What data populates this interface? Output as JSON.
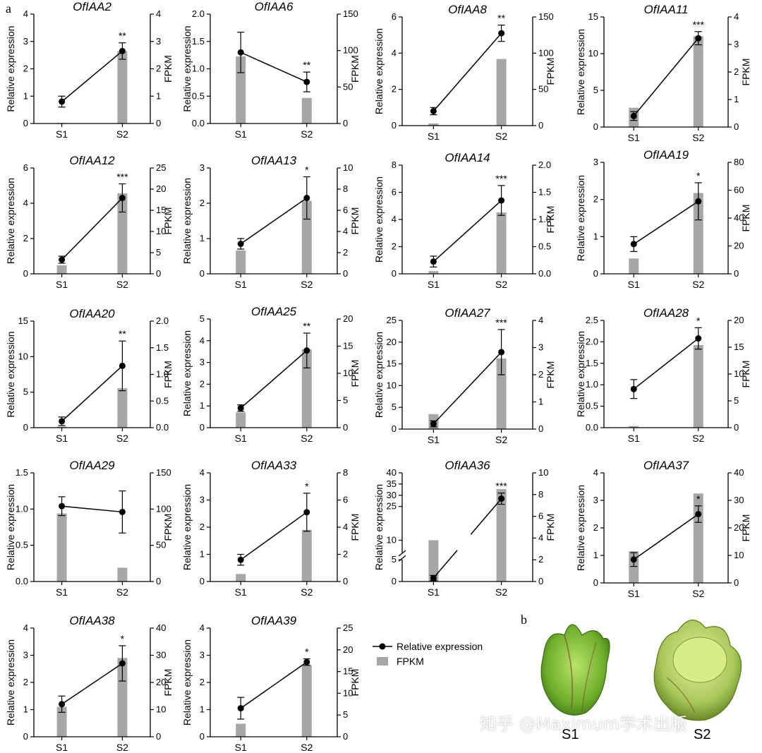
{
  "figure": {
    "panel_a": "a",
    "panel_b": "b",
    "legend": {
      "line_label": "Relative expression",
      "bar_label": "FPKM"
    },
    "photo_labels": [
      "S1",
      "S2"
    ],
    "watermark": "知乎 @Maximum学术出版"
  },
  "colors": {
    "bar": "#a6a6a6",
    "line": "#000000",
    "axis": "#000000"
  },
  "chart_data": [
    {
      "type": "bar",
      "title": "OfIAA2",
      "categories": [
        "S1",
        "S2"
      ],
      "ylabel": "Relative expression",
      "y2label": "FPKM",
      "ylim": [
        0,
        4
      ],
      "yticks": [
        0,
        1,
        2,
        3,
        4
      ],
      "y2lim": [
        0,
        4
      ],
      "y2ticks": [
        0,
        1,
        2,
        3,
        4
      ],
      "series": [
        {
          "name": "FPKM",
          "axis": "right",
          "values": [
            0.02,
            2.65
          ]
        },
        {
          "name": "Relative expression",
          "axis": "left",
          "values": [
            0.8,
            2.65
          ],
          "errors": [
            0.2,
            0.3
          ]
        }
      ],
      "significance": [
        "",
        "**"
      ]
    },
    {
      "type": "bar",
      "title": "OfIAA6",
      "categories": [
        "S1",
        "S2"
      ],
      "ylabel": "Relative expression",
      "y2label": "FPKM",
      "ylim": [
        0,
        2
      ],
      "yticks": [
        "0.0",
        "0.5",
        "1.0",
        "1.5",
        "2.0"
      ],
      "y2lim": [
        0,
        150
      ],
      "y2ticks": [
        0,
        50,
        100,
        150
      ],
      "series": [
        {
          "name": "FPKM",
          "axis": "right",
          "values": [
            92,
            35
          ]
        },
        {
          "name": "Relative expression",
          "axis": "left",
          "values": [
            1.3,
            0.76
          ],
          "errors": [
            0.37,
            0.18
          ]
        }
      ],
      "significance": [
        "",
        "**"
      ]
    },
    {
      "type": "bar",
      "title": "OfIAA8",
      "categories": [
        "S1",
        "S2"
      ],
      "ylabel": "Relative expression",
      "y2label": "FPKM",
      "ylim": [
        0,
        6
      ],
      "yticks": [
        0,
        2,
        4,
        6
      ],
      "y2lim": [
        0,
        150
      ],
      "y2ticks": [
        0,
        50,
        100,
        150
      ],
      "series": [
        {
          "name": "FPKM",
          "axis": "right",
          "values": [
            3,
            92
          ]
        },
        {
          "name": "Relative expression",
          "axis": "left",
          "values": [
            0.8,
            5.1
          ],
          "errors": [
            0.2,
            0.45
          ]
        }
      ],
      "significance": [
        "",
        "**"
      ]
    },
    {
      "type": "bar",
      "title": "OfIAA11",
      "categories": [
        "S1",
        "S2"
      ],
      "ylabel": "Relative expression",
      "y2label": "FPKM",
      "ylim": [
        0,
        15
      ],
      "yticks": [
        0,
        5,
        10,
        15
      ],
      "y2lim": [
        0,
        4
      ],
      "y2ticks": [
        0,
        1,
        2,
        3,
        4
      ],
      "series": [
        {
          "name": "FPKM",
          "axis": "right",
          "values": [
            0.7,
            3.3
          ]
        },
        {
          "name": "Relative expression",
          "axis": "left",
          "values": [
            1.5,
            12.1
          ],
          "errors": [
            0.6,
            0.9
          ]
        }
      ],
      "significance": [
        "",
        "***"
      ]
    },
    {
      "type": "bar",
      "title": "OfIAA12",
      "categories": [
        "S1",
        "S2"
      ],
      "ylabel": "Relative expression",
      "y2label": "FPKM",
      "ylim": [
        0,
        6
      ],
      "yticks": [
        0,
        2,
        4,
        6
      ],
      "y2lim": [
        0,
        25
      ],
      "y2ticks": [
        0,
        5,
        10,
        15,
        20,
        25
      ],
      "series": [
        {
          "name": "FPKM",
          "axis": "right",
          "values": [
            2,
            19
          ]
        },
        {
          "name": "Relative expression",
          "axis": "left",
          "values": [
            0.8,
            4.3
          ],
          "errors": [
            0.2,
            0.8
          ]
        }
      ],
      "significance": [
        "",
        "***"
      ]
    },
    {
      "type": "bar",
      "title": "OfIAA13",
      "categories": [
        "S1",
        "S2"
      ],
      "ylabel": "Relative expression",
      "y2label": "FPKM",
      "ylim": [
        0,
        3
      ],
      "yticks": [
        0,
        1,
        2,
        3
      ],
      "y2lim": [
        0,
        10
      ],
      "y2ticks": [
        0,
        2,
        4,
        6,
        8,
        10
      ],
      "series": [
        {
          "name": "FPKM",
          "axis": "right",
          "values": [
            2.2,
            6.9
          ]
        },
        {
          "name": "Relative expression",
          "axis": "left",
          "values": [
            0.85,
            2.15
          ],
          "errors": [
            0.15,
            0.6
          ]
        }
      ],
      "significance": [
        "",
        "*"
      ]
    },
    {
      "type": "bar",
      "title": "OfIAA14",
      "categories": [
        "S1",
        "S2"
      ],
      "ylabel": "Relative expression",
      "y2label": "FPKM",
      "ylim": [
        0,
        8
      ],
      "yticks": [
        0,
        2,
        4,
        6,
        8
      ],
      "y2lim": [
        0,
        2
      ],
      "y2ticks": [
        "0.0",
        "0.5",
        "1.0",
        "1.5",
        "2.0"
      ],
      "series": [
        {
          "name": "FPKM",
          "axis": "right",
          "values": [
            0.05,
            1.13
          ]
        },
        {
          "name": "Relative expression",
          "axis": "left",
          "values": [
            0.9,
            5.4
          ],
          "errors": [
            0.4,
            1.1
          ]
        }
      ],
      "significance": [
        "",
        "***"
      ]
    },
    {
      "type": "bar",
      "title": "OfIAA19",
      "categories": [
        "S1",
        "S2"
      ],
      "ylabel": "Relative expression",
      "y2label": "FPKM",
      "ylim": [
        0,
        3
      ],
      "yticks": [
        0,
        1,
        2,
        3
      ],
      "y2lim": [
        0,
        80
      ],
      "y2ticks": [
        0,
        20,
        40,
        60,
        80
      ],
      "series": [
        {
          "name": "FPKM",
          "axis": "right",
          "values": [
            11,
            58
          ]
        },
        {
          "name": "Relative expression",
          "axis": "left",
          "values": [
            0.8,
            1.95
          ],
          "errors": [
            0.2,
            0.5
          ]
        }
      ],
      "significance": [
        "",
        "*"
      ]
    },
    {
      "type": "bar",
      "title": "OfIAA20",
      "categories": [
        "S1",
        "S2"
      ],
      "ylabel": "Relative expression",
      "y2label": "FPKM",
      "ylim": [
        0,
        15
      ],
      "yticks": [
        0,
        5,
        10,
        15
      ],
      "y2lim": [
        0,
        2
      ],
      "y2ticks": [
        "0.0",
        "0.5",
        "1.0",
        "1.5",
        "2.0"
      ],
      "series": [
        {
          "name": "FPKM",
          "axis": "right",
          "values": [
            0.02,
            0.74
          ]
        },
        {
          "name": "Relative expression",
          "axis": "left",
          "values": [
            0.9,
            8.7
          ],
          "errors": [
            0.6,
            3.5
          ]
        }
      ],
      "significance": [
        "",
        "**"
      ]
    },
    {
      "type": "bar",
      "title": "OfIAA25",
      "categories": [
        "S1",
        "S2"
      ],
      "ylabel": "Relative expression",
      "y2label": "FPKM",
      "ylim": [
        0,
        5
      ],
      "yticks": [
        0,
        1,
        2,
        3,
        4,
        5
      ],
      "y2lim": [
        0,
        20
      ],
      "y2ticks": [
        0,
        5,
        10,
        15,
        20
      ],
      "series": [
        {
          "name": "FPKM",
          "axis": "right",
          "values": [
            2.8,
            14.4
          ]
        },
        {
          "name": "Relative expression",
          "axis": "left",
          "values": [
            0.9,
            3.55
          ],
          "errors": [
            0.15,
            0.8
          ]
        }
      ],
      "significance": [
        "",
        "**"
      ]
    },
    {
      "type": "bar",
      "title": "OfIAA27",
      "categories": [
        "S1",
        "S2"
      ],
      "ylabel": "Relative expression",
      "y2label": "FPKM",
      "ylim": [
        0,
        25
      ],
      "yticks": [
        0,
        5,
        10,
        15,
        20,
        25
      ],
      "y2lim": [
        0,
        4
      ],
      "y2ticks": [
        0,
        1,
        2,
        3,
        4
      ],
      "series": [
        {
          "name": "FPKM",
          "axis": "right",
          "values": [
            0.55,
            2.6
          ]
        },
        {
          "name": "Relative expression",
          "axis": "left",
          "values": [
            1.2,
            17.7
          ],
          "errors": [
            0.7,
            5.2
          ]
        }
      ],
      "significance": [
        "",
        "***"
      ]
    },
    {
      "type": "bar",
      "title": "OfIAA28",
      "categories": [
        "S1",
        "S2"
      ],
      "ylabel": "Relative expression",
      "y2label": "FPKM",
      "ylim": [
        0,
        2.5
      ],
      "yticks": [
        "0.0",
        "0.5",
        "1.0",
        "1.5",
        "2.0",
        "2.5"
      ],
      "y2lim": [
        0,
        20
      ],
      "y2ticks": [
        0,
        5,
        10,
        15,
        20
      ],
      "series": [
        {
          "name": "FPKM",
          "axis": "right",
          "values": [
            0.3,
            15.4
          ]
        },
        {
          "name": "Relative expression",
          "axis": "left",
          "values": [
            0.9,
            2.08
          ],
          "errors": [
            0.22,
            0.25
          ]
        }
      ],
      "significance": [
        "",
        "*"
      ]
    },
    {
      "type": "bar",
      "title": "OfIAA29",
      "categories": [
        "S1",
        "S2"
      ],
      "ylabel": "Relative expression",
      "y2label": "FPKM",
      "ylim": [
        0,
        1.5
      ],
      "yticks": [
        "0.0",
        "0.5",
        "1.0",
        "1.5"
      ],
      "y2lim": [
        0,
        150
      ],
      "y2ticks": [
        0,
        50,
        100,
        150
      ],
      "series": [
        {
          "name": "FPKM",
          "axis": "right",
          "values": [
            94,
            19
          ]
        },
        {
          "name": "Relative expression",
          "axis": "left",
          "values": [
            1.04,
            0.96
          ],
          "errors": [
            0.13,
            0.29
          ]
        }
      ],
      "significance": [
        "",
        ""
      ]
    },
    {
      "type": "bar",
      "title": "OfIAA33",
      "categories": [
        "S1",
        "S2"
      ],
      "ylabel": "Relative expression",
      "y2label": "FPKM",
      "ylim": [
        0,
        4
      ],
      "yticks": [
        0,
        1,
        2,
        3,
        4
      ],
      "y2lim": [
        0,
        8
      ],
      "y2ticks": [
        0,
        2,
        4,
        6,
        8
      ],
      "series": [
        {
          "name": "FPKM",
          "axis": "right",
          "values": [
            0.55,
            3.8
          ]
        },
        {
          "name": "Relative expression",
          "axis": "left",
          "values": [
            0.8,
            2.55
          ],
          "errors": [
            0.2,
            0.7
          ]
        }
      ],
      "significance": [
        "",
        "*"
      ]
    },
    {
      "type": "bar",
      "title": "OfIAA36",
      "categories": [
        "S1",
        "S2"
      ],
      "ylabel": "Relative expression",
      "y2label": "FPKM",
      "ylim": [
        0,
        40
      ],
      "yticks": [
        0,
        5,
        10,
        25,
        30,
        35,
        40
      ],
      "axis_break": [
        5.5,
        9.5
      ],
      "y2lim": [
        0,
        10
      ],
      "y2ticks": [
        0,
        2,
        4,
        6,
        8,
        10
      ],
      "series": [
        {
          "name": "FPKM",
          "axis": "right",
          "values": [
            3.8,
            8.5
          ]
        },
        {
          "name": "Relative expression",
          "axis": "left",
          "values": [
            0.8,
            28.5
          ],
          "errors": [
            0.6,
            2.5
          ]
        }
      ],
      "significance": [
        "",
        "***"
      ]
    },
    {
      "type": "bar",
      "title": "OfIAA37",
      "categories": [
        "S1",
        "S2"
      ],
      "ylabel": "Relative expression",
      "y2label": "FPKM",
      "ylim": [
        0,
        4
      ],
      "yticks": [
        0,
        1,
        2,
        3,
        4
      ],
      "y2lim": [
        0,
        40
      ],
      "y2ticks": [
        0,
        10,
        20,
        30,
        40
      ],
      "series": [
        {
          "name": "FPKM",
          "axis": "right",
          "values": [
            11.5,
            32.5
          ]
        },
        {
          "name": "Relative expression",
          "axis": "left",
          "values": [
            0.85,
            2.5
          ],
          "errors": [
            0.25,
            0.3
          ]
        }
      ],
      "significance": [
        "",
        "*"
      ]
    },
    {
      "type": "bar",
      "title": "OfIAA38",
      "categories": [
        "S1",
        "S2"
      ],
      "ylabel": "Relative expression",
      "y2label": "FPKM",
      "ylim": [
        0,
        4
      ],
      "yticks": [
        0,
        1,
        2,
        3,
        4
      ],
      "y2lim": [
        0,
        40
      ],
      "y2ticks": [
        0,
        10,
        20,
        30,
        40
      ],
      "series": [
        {
          "name": "FPKM",
          "axis": "right",
          "values": [
            11,
            29
          ]
        },
        {
          "name": "Relative expression",
          "axis": "left",
          "values": [
            1.2,
            2.7
          ],
          "errors": [
            0.3,
            0.65
          ]
        }
      ],
      "significance": [
        "",
        "*"
      ]
    },
    {
      "type": "bar",
      "title": "OfIAA39",
      "categories": [
        "S1",
        "S2"
      ],
      "ylabel": "Relative expression",
      "y2label": "FPKM",
      "ylim": [
        0,
        4
      ],
      "yticks": [
        0,
        1,
        2,
        3,
        4
      ],
      "y2lim": [
        0,
        25
      ],
      "y2ticks": [
        0,
        5,
        10,
        15,
        20,
        25
      ],
      "series": [
        {
          "name": "FPKM",
          "axis": "right",
          "values": [
            3,
            16.5
          ]
        },
        {
          "name": "Relative expression",
          "axis": "left",
          "values": [
            1.05,
            2.75
          ],
          "errors": [
            0.4,
            0.12
          ]
        }
      ],
      "significance": [
        "",
        "*"
      ]
    }
  ]
}
